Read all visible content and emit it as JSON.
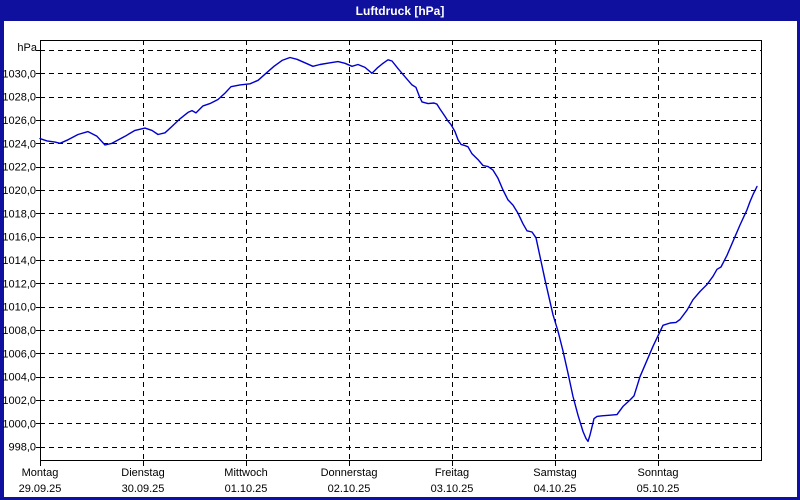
{
  "window": {
    "title": "Luftdruck [hPa]"
  },
  "colors": {
    "titlebar": "#10109E",
    "window_border": "#10109E",
    "background": "#FFFFFF",
    "line": "#0000CC",
    "grid": "#000000",
    "text": "#000000"
  },
  "chart_data": {
    "type": "line",
    "title": "Luftdruck [hPa]",
    "unit_label": "hPa",
    "grid": "dashed",
    "legend": "none",
    "y_axis": {
      "unit": "hPa",
      "axis_top_value": 1032.85,
      "axis_bottom_value": 996.86,
      "gridline_step": 2,
      "gridlines": [
        1032,
        1030,
        1028,
        1026,
        1024,
        1022,
        1020,
        1018,
        1016,
        1014,
        1012,
        1010,
        1008,
        1006,
        1004,
        1002,
        1000,
        998
      ],
      "ticks": [
        {
          "value": 1030,
          "label": "1030,0"
        },
        {
          "value": 1028,
          "label": "1028,0"
        },
        {
          "value": 1026,
          "label": "1026,0"
        },
        {
          "value": 1024,
          "label": "1024,0"
        },
        {
          "value": 1022,
          "label": "1022,0"
        },
        {
          "value": 1020,
          "label": "1020,0"
        },
        {
          "value": 1018,
          "label": "1018,0"
        },
        {
          "value": 1016,
          "label": "1016,0"
        },
        {
          "value": 1014,
          "label": "1014,0"
        },
        {
          "value": 1012,
          "label": "1012,0"
        },
        {
          "value": 1010,
          "label": "1010,0"
        },
        {
          "value": 1008,
          "label": "1008,0"
        },
        {
          "value": 1006,
          "label": "1006,0"
        },
        {
          "value": 1004,
          "label": "1004,0"
        },
        {
          "value": 1002,
          "label": "1002,0"
        },
        {
          "value": 1000,
          "label": "1000,0"
        },
        {
          "value": 998,
          "label": "998,0"
        }
      ]
    },
    "x_axis": {
      "range_days": 7,
      "days": [
        {
          "name": "Montag",
          "date": "29.09.25"
        },
        {
          "name": "Dienstag",
          "date": "30.09.25"
        },
        {
          "name": "Mittwoch",
          "date": "01.10.25"
        },
        {
          "name": "Donnerstag",
          "date": "02.10.25"
        },
        {
          "name": "Freitag",
          "date": "03.10.25"
        },
        {
          "name": "Samstag",
          "date": "04.10.25"
        },
        {
          "name": "Sonntag",
          "date": "05.10.25"
        }
      ]
    },
    "series": [
      {
        "name": "Luftdruck",
        "unit": "hPa",
        "color": "#0000CC",
        "points": [
          [
            0.0,
            1024.4
          ],
          [
            0.068,
            1024.2
          ],
          [
            0.146,
            1024.1
          ],
          [
            0.194,
            1024.0
          ],
          [
            0.272,
            1024.3
          ],
          [
            0.369,
            1024.75
          ],
          [
            0.466,
            1025.0
          ],
          [
            0.553,
            1024.6
          ],
          [
            0.631,
            1023.85
          ],
          [
            0.699,
            1024.0
          ],
          [
            0.825,
            1024.6
          ],
          [
            0.922,
            1025.1
          ],
          [
            1.019,
            1025.3
          ],
          [
            1.087,
            1025.1
          ],
          [
            1.146,
            1024.75
          ],
          [
            1.214,
            1024.9
          ],
          [
            1.282,
            1025.45
          ],
          [
            1.359,
            1026.1
          ],
          [
            1.437,
            1026.65
          ],
          [
            1.476,
            1026.8
          ],
          [
            1.515,
            1026.6
          ],
          [
            1.583,
            1027.2
          ],
          [
            1.65,
            1027.4
          ],
          [
            1.728,
            1027.75
          ],
          [
            1.796,
            1028.3
          ],
          [
            1.854,
            1028.85
          ],
          [
            1.942,
            1029.0
          ],
          [
            2.039,
            1029.1
          ],
          [
            2.117,
            1029.4
          ],
          [
            2.194,
            1030.0
          ],
          [
            2.272,
            1030.6
          ],
          [
            2.35,
            1031.1
          ],
          [
            2.427,
            1031.35
          ],
          [
            2.495,
            1031.2
          ],
          [
            2.573,
            1030.9
          ],
          [
            2.65,
            1030.6
          ],
          [
            2.718,
            1030.75
          ],
          [
            2.816,
            1030.9
          ],
          [
            2.893,
            1031.0
          ],
          [
            2.961,
            1030.85
          ],
          [
            3.029,
            1030.6
          ],
          [
            3.087,
            1030.75
          ],
          [
            3.155,
            1030.5
          ],
          [
            3.223,
            1030.0
          ],
          [
            3.281,
            1030.5
          ],
          [
            3.33,
            1030.85
          ],
          [
            3.379,
            1031.15
          ],
          [
            3.417,
            1031.05
          ],
          [
            3.476,
            1030.4
          ],
          [
            3.544,
            1029.7
          ],
          [
            3.612,
            1029.0
          ],
          [
            3.65,
            1028.8
          ],
          [
            3.68,
            1028.1
          ],
          [
            3.709,
            1027.55
          ],
          [
            3.767,
            1027.4
          ],
          [
            3.825,
            1027.45
          ],
          [
            3.854,
            1027.35
          ],
          [
            3.883,
            1026.95
          ],
          [
            3.932,
            1026.3
          ],
          [
            3.961,
            1025.9
          ],
          [
            3.99,
            1025.6
          ],
          [
            4.029,
            1025.0
          ],
          [
            4.058,
            1024.3
          ],
          [
            4.087,
            1023.9
          ],
          [
            4.126,
            1023.8
          ],
          [
            4.155,
            1023.7
          ],
          [
            4.194,
            1023.1
          ],
          [
            4.252,
            1022.6
          ],
          [
            4.301,
            1022.1
          ],
          [
            4.35,
            1022.0
          ],
          [
            4.398,
            1021.7
          ],
          [
            4.447,
            1021.0
          ],
          [
            4.495,
            1020.0
          ],
          [
            4.544,
            1019.15
          ],
          [
            4.592,
            1018.7
          ],
          [
            4.641,
            1018.0
          ],
          [
            4.689,
            1017.1
          ],
          [
            4.728,
            1016.5
          ],
          [
            4.777,
            1016.4
          ],
          [
            4.816,
            1015.9
          ],
          [
            4.854,
            1014.3
          ],
          [
            4.903,
            1012.3
          ],
          [
            4.942,
            1010.8
          ],
          [
            4.981,
            1009.3
          ],
          [
            5.029,
            1007.9
          ],
          [
            5.078,
            1006.2
          ],
          [
            5.126,
            1004.3
          ],
          [
            5.175,
            1002.3
          ],
          [
            5.223,
            1000.7
          ],
          [
            5.272,
            999.3
          ],
          [
            5.301,
            998.7
          ],
          [
            5.32,
            998.45
          ],
          [
            5.34,
            999.0
          ],
          [
            5.359,
            999.7
          ],
          [
            5.379,
            1000.4
          ],
          [
            5.408,
            1000.6
          ],
          [
            5.456,
            1000.65
          ],
          [
            5.534,
            1000.7
          ],
          [
            5.602,
            1000.75
          ],
          [
            5.66,
            1001.45
          ],
          [
            5.728,
            1002.0
          ],
          [
            5.767,
            1002.35
          ],
          [
            5.825,
            1004.0
          ],
          [
            5.893,
            1005.4
          ],
          [
            5.951,
            1006.6
          ],
          [
            6.0,
            1007.5
          ],
          [
            6.049,
            1008.4
          ],
          [
            6.117,
            1008.6
          ],
          [
            6.175,
            1008.65
          ],
          [
            6.214,
            1008.9
          ],
          [
            6.282,
            1009.7
          ],
          [
            6.34,
            1010.6
          ],
          [
            6.408,
            1011.3
          ],
          [
            6.476,
            1011.9
          ],
          [
            6.534,
            1012.6
          ],
          [
            6.573,
            1013.2
          ],
          [
            6.612,
            1013.4
          ],
          [
            6.67,
            1014.4
          ],
          [
            6.728,
            1015.6
          ],
          [
            6.796,
            1017.0
          ],
          [
            6.864,
            1018.3
          ],
          [
            6.893,
            1019.0
          ],
          [
            6.922,
            1019.6
          ],
          [
            6.961,
            1020.3
          ]
        ]
      }
    ]
  }
}
